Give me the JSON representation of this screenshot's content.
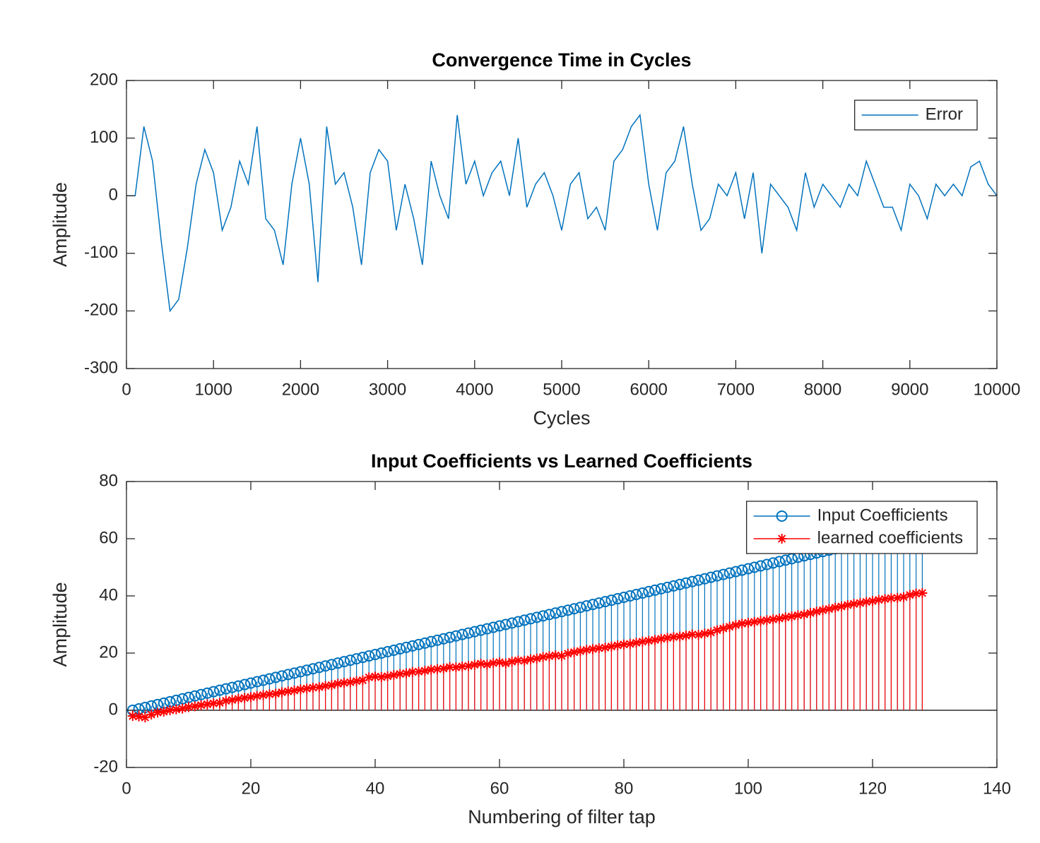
{
  "chart_data": [
    {
      "type": "line",
      "title": "Convergence Time in Cycles",
      "xlabel": "Cycles",
      "ylabel": "Amplitude",
      "x": [
        0,
        100,
        200,
        300,
        400,
        500,
        600,
        700,
        800,
        900,
        1000,
        1100,
        1200,
        1300,
        1400,
        1500,
        1600,
        1700,
        1800,
        1900,
        2000,
        2100,
        2200,
        2300,
        2400,
        2500,
        2600,
        2700,
        2800,
        2900,
        3000,
        3100,
        3200,
        3300,
        3400,
        3500,
        3600,
        3700,
        3800,
        3900,
        4000,
        4100,
        4200,
        4300,
        4400,
        4500,
        4600,
        4700,
        4800,
        4900,
        5000,
        5100,
        5200,
        5300,
        5400,
        5500,
        5600,
        5700,
        5800,
        5900,
        6000,
        6100,
        6200,
        6300,
        6400,
        6500,
        6600,
        6700,
        6800,
        6900,
        7000,
        7100,
        7200,
        7300,
        7400,
        7500,
        7600,
        7700,
        7800,
        7900,
        8000,
        8100,
        8200,
        8300,
        8400,
        8500,
        8600,
        8700,
        8800,
        8900,
        9000,
        9100,
        9200,
        9300,
        9400,
        9500,
        9600,
        9700,
        9800,
        9900,
        10000
      ],
      "series": [
        {
          "name": "Error",
          "color": "#0072bd",
          "values": [
            0,
            0,
            120,
            60,
            -80,
            -200,
            -180,
            -90,
            20,
            80,
            40,
            -60,
            -20,
            60,
            20,
            120,
            -40,
            -60,
            -120,
            20,
            100,
            20,
            -150,
            120,
            20,
            40,
            -20,
            -120,
            40,
            80,
            60,
            -60,
            20,
            -40,
            -120,
            60,
            0,
            -40,
            140,
            20,
            60,
            0,
            40,
            60,
            0,
            100,
            -20,
            20,
            40,
            0,
            -60,
            20,
            40,
            -40,
            -20,
            -60,
            60,
            80,
            120,
            140,
            20,
            -60,
            40,
            60,
            120,
            20,
            -60,
            -40,
            20,
            0,
            40,
            -40,
            40,
            -100,
            20,
            0,
            -20,
            -60,
            40,
            -20,
            20,
            0,
            -20,
            20,
            0,
            60,
            20,
            -20,
            -20,
            -60,
            20,
            0,
            -40,
            20,
            0,
            20,
            0,
            50,
            60,
            20,
            0
          ]
        }
      ],
      "xlim": [
        0,
        10000
      ],
      "ylim": [
        -300,
        200
      ],
      "xticks": [
        0,
        1000,
        2000,
        3000,
        4000,
        5000,
        6000,
        7000,
        8000,
        9000,
        10000
      ],
      "yticks": [
        -300,
        -200,
        -100,
        0,
        100,
        200
      ],
      "legend": "northeast"
    },
    {
      "type": "stem",
      "title": "Input Coefficients vs Learned Coefficients",
      "xlabel": "Numbering of filter tap",
      "ylabel": "Amplitude",
      "x": [
        1,
        2,
        3,
        4,
        5,
        6,
        7,
        8,
        9,
        10,
        11,
        12,
        13,
        14,
        15,
        16,
        17,
        18,
        19,
        20,
        21,
        22,
        23,
        24,
        25,
        26,
        27,
        28,
        29,
        30,
        31,
        32,
        33,
        34,
        35,
        36,
        37,
        38,
        39,
        40,
        41,
        42,
        43,
        44,
        45,
        46,
        47,
        48,
        49,
        50,
        51,
        52,
        53,
        54,
        55,
        56,
        57,
        58,
        59,
        60,
        61,
        62,
        63,
        64,
        65,
        66,
        67,
        68,
        69,
        70,
        71,
        72,
        73,
        74,
        75,
        76,
        77,
        78,
        79,
        80,
        81,
        82,
        83,
        84,
        85,
        86,
        87,
        88,
        89,
        90,
        91,
        92,
        93,
        94,
        95,
        96,
        97,
        98,
        99,
        100,
        101,
        102,
        103,
        104,
        105,
        106,
        107,
        108,
        109,
        110,
        111,
        112,
        113,
        114,
        115,
        116,
        117,
        118,
        119,
        120,
        121,
        122,
        123,
        124,
        125,
        126,
        127,
        128
      ],
      "series": [
        {
          "name": "Input Coefficients",
          "color": "#0072bd",
          "marker": "o",
          "values": [
            0,
            0.5,
            1,
            1.5,
            2,
            2.5,
            3,
            3.5,
            4,
            4.5,
            5,
            5.5,
            6,
            6.5,
            7,
            7.5,
            8,
            8.5,
            9,
            9.5,
            10,
            10.5,
            11,
            11.5,
            12,
            12.5,
            13,
            13.5,
            14,
            14.5,
            15,
            15.5,
            16,
            16.5,
            17,
            17.5,
            18,
            18.5,
            19,
            19.5,
            20,
            20.5,
            21,
            21.5,
            22,
            22.5,
            23,
            23.5,
            24,
            24.5,
            25,
            25.5,
            26,
            26.5,
            27,
            27.5,
            28,
            28.5,
            29,
            29.5,
            30,
            30.5,
            31,
            31.5,
            32,
            32.5,
            33,
            33.5,
            34,
            34.5,
            35,
            35.5,
            36,
            36.5,
            37,
            37.5,
            38,
            38.5,
            39,
            39.5,
            40,
            40.5,
            41,
            41.5,
            42,
            42.5,
            43,
            43.5,
            44,
            44.5,
            45,
            45.5,
            46,
            46.5,
            47,
            47.5,
            48,
            48.5,
            49,
            49.5,
            50,
            50.5,
            51,
            51.5,
            52,
            52.5,
            53,
            53.5,
            54,
            54.5,
            55,
            55.5,
            56,
            56.5,
            57,
            57.5,
            58,
            58.5,
            59,
            59.5,
            60,
            60.5,
            61,
            61.5,
            62,
            62.5,
            63,
            63.5
          ]
        },
        {
          "name": "learned coefficients",
          "color": "#ff0000",
          "marker": "*",
          "values": [
            -2,
            -2.2,
            -2.5,
            -1.5,
            -0.8,
            -0.5,
            0,
            0.3,
            0.6,
            1.1,
            1.4,
            1.8,
            2.1,
            2.4,
            2.6,
            3.3,
            3.6,
            4.0,
            4.3,
            4.6,
            5.0,
            5.3,
            5.6,
            5.8,
            6.3,
            6.6,
            6.9,
            7.3,
            7.6,
            7.9,
            8.1,
            8.5,
            8.8,
            9.3,
            9.6,
            9.8,
            10.2,
            10.5,
            11.5,
            11.8,
            11.6,
            11.9,
            12.3,
            12.7,
            12.9,
            13.4,
            13.5,
            13.8,
            14.2,
            14.4,
            14.6,
            15.1,
            15.0,
            15.3,
            15.5,
            15.9,
            16.3,
            16.0,
            16.5,
            16.8,
            16.4,
            17.0,
            17.4,
            17.3,
            17.8,
            18.1,
            18.6,
            18.9,
            19.2,
            19.0,
            19.8,
            20.3,
            20.7,
            21.1,
            21.4,
            21.7,
            21.9,
            22.3,
            22.7,
            23.0,
            23.2,
            23.6,
            24.0,
            24.3,
            24.6,
            25.0,
            25.3,
            25.6,
            25.8,
            26.1,
            26.5,
            26.4,
            26.8,
            27.2,
            28.0,
            28.6,
            29.2,
            29.8,
            30.3,
            30.6,
            30.9,
            31.2,
            31.5,
            31.8,
            32.1,
            32.5,
            32.8,
            33.2,
            33.5,
            34.0,
            34.5,
            35.0,
            35.4,
            35.9,
            36.3,
            36.8,
            37.2,
            37.5,
            37.9,
            38.2,
            38.6,
            38.9,
            39.2,
            39.3,
            39.6,
            40.3,
            40.8,
            41.0
          ]
        }
      ],
      "xlim": [
        0,
        140
      ],
      "ylim": [
        -20,
        80
      ],
      "xticks": [
        0,
        20,
        40,
        60,
        80,
        100,
        120,
        140
      ],
      "yticks": [
        -20,
        0,
        20,
        40,
        60,
        80
      ],
      "legend": "northeast"
    }
  ]
}
